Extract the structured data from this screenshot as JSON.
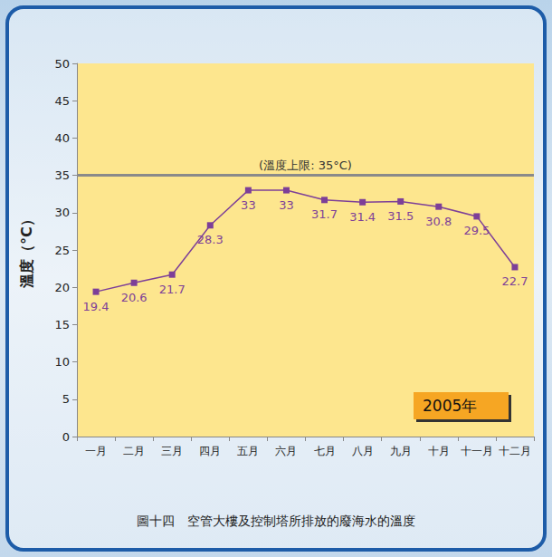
{
  "chart_data": {
    "type": "line",
    "title": "圖十四　空管大樓及控制塔所排放的廢海水的溫度",
    "y_label": "溫度（°C）",
    "categories": [
      "一月",
      "二月",
      "三月",
      "四月",
      "五月",
      "六月",
      "七月",
      "八月",
      "九月",
      "十月",
      "十一月",
      "十二月"
    ],
    "values": [
      19.4,
      20.6,
      21.7,
      28.3,
      33,
      33,
      31.7,
      31.4,
      31.5,
      30.8,
      29.5,
      22.7
    ],
    "color": "#7d3f98",
    "marker": "square",
    "line_style": "solid",
    "data_labels": true,
    "ylim": [
      0,
      50
    ],
    "yticks": [
      0,
      5,
      10,
      15,
      20,
      25,
      30,
      35,
      40,
      45,
      50
    ],
    "grid": false,
    "reference_line": {
      "value": 35,
      "label": "(溫度上限: 35°C)"
    },
    "annotation": "2005年"
  }
}
